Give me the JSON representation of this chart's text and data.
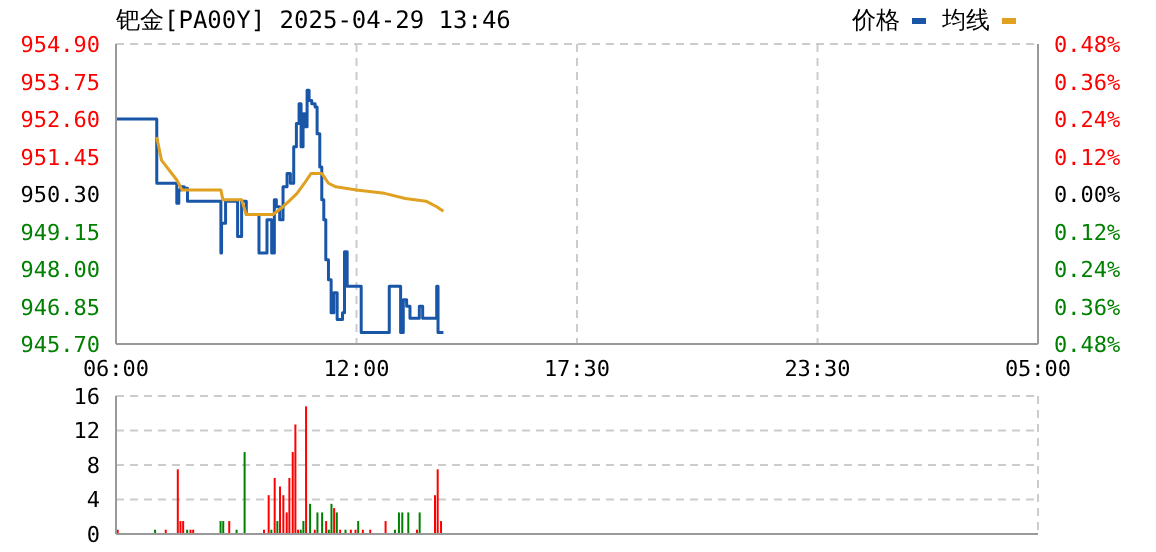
{
  "chart_data": [
    {
      "type": "line",
      "title": "钯金[PA00Y] 2025-04-29 13:46",
      "legend": "top right",
      "grid": true,
      "xlim": [
        "2025-04-29T06:00",
        "2025-04-30T05:00"
      ],
      "xticks": [
        {
          "value": "2025-04-29T06:00",
          "label": "06:00"
        },
        {
          "value": "2025-04-29T12:00",
          "label": "12:00"
        },
        {
          "value": "2025-04-29T17:30",
          "label": "17:30"
        },
        {
          "value": "2025-04-29T23:30",
          "label": "23:30"
        },
        {
          "value": "2025-04-30T05:00",
          "label": "05:00"
        }
      ],
      "ylim": [
        945.7,
        954.9
      ],
      "yticks": [
        {
          "value": 945.7,
          "label": "945.70"
        },
        {
          "value": 946.85,
          "label": "946.85"
        },
        {
          "value": 948,
          "label": "948.00"
        },
        {
          "value": 949.15,
          "label": "949.15"
        },
        {
          "value": 950.3,
          "label": "950.30"
        },
        {
          "value": 951.45,
          "label": "951.45"
        },
        {
          "value": 952.6,
          "label": "952.60"
        },
        {
          "value": 953.75,
          "label": "953.75"
        },
        {
          "value": 954.9,
          "label": "954.90"
        }
      ],
      "y2lim": [
        -0.48,
        0.48
      ],
      "y2ticks": [
        {
          "value": -0.48,
          "label": "0.48%"
        },
        {
          "value": -0.36,
          "label": "0.36%"
        },
        {
          "value": -0.24,
          "label": "0.24%"
        },
        {
          "value": -0.12,
          "label": "0.12%"
        },
        {
          "value": 0,
          "label": "0.00%"
        },
        {
          "value": 0.12,
          "label": "0.12%"
        },
        {
          "value": 0.24,
          "label": "0.24%"
        },
        {
          "value": 0.36,
          "label": "0.36%"
        },
        {
          "value": 0.48,
          "label": "0.48%"
        }
      ],
      "series": [
        {
          "name": "价格",
          "type": "step",
          "color": "#1a56a8",
          "x": [
            "2025-04-29T06:00",
            "2025-04-29T07:01",
            "2025-04-29T07:31",
            "2025-04-29T07:34",
            "2025-04-29T07:37",
            "2025-04-29T07:42",
            "2025-04-29T07:47",
            "2025-04-29T07:52",
            "2025-04-29T08:37",
            "2025-04-29T08:38",
            "2025-04-29T08:44",
            "2025-04-29T08:52",
            "2025-04-29T09:02",
            "2025-04-29T09:08",
            "2025-04-29T09:15",
            "2025-04-29T09:34",
            "2025-04-29T09:46",
            "2025-04-29T09:53",
            "2025-04-29T09:57",
            "2025-04-29T10:00",
            "2025-04-29T10:05",
            "2025-04-29T10:10",
            "2025-04-29T10:16",
            "2025-04-29T10:21",
            "2025-04-29T10:26",
            "2025-04-29T10:30",
            "2025-04-29T10:34",
            "2025-04-29T10:37",
            "2025-04-29T10:40",
            "2025-04-29T10:43",
            "2025-04-29T10:46",
            "2025-04-29T10:49",
            "2025-04-29T10:53",
            "2025-04-29T10:58",
            "2025-04-29T11:01",
            "2025-04-29T11:05",
            "2025-04-29T11:08",
            "2025-04-29T11:11",
            "2025-04-29T11:14",
            "2025-04-29T11:18",
            "2025-04-29T11:22",
            "2025-04-29T11:26",
            "2025-04-29T11:31",
            "2025-04-29T11:39",
            "2025-04-29T11:42",
            "2025-04-29T11:46",
            "2025-04-29T12:03",
            "2025-04-29T12:07",
            "2025-04-29T12:45",
            "2025-04-29T12:49",
            "2025-04-29T13:02",
            "2025-04-29T13:06",
            "2025-04-29T13:10",
            "2025-04-29T13:15",
            "2025-04-29T13:20",
            "2025-04-29T13:29",
            "2025-04-29T13:34",
            "2025-04-29T13:39",
            "2025-04-29T13:55",
            "2025-04-29T14:00",
            "2025-04-29T14:02",
            "2025-04-29T14:10"
          ],
          "values": [
            952.6,
            950.63,
            950.02,
            950.42,
            950.52,
            950.48,
            950.08,
            950.08,
            948.49,
            949.4,
            950.08,
            950.08,
            949.0,
            950.08,
            949.67,
            948.49,
            949.51,
            948.49,
            950.12,
            949.91,
            949.51,
            950.52,
            950.93,
            950.63,
            951.75,
            952.46,
            953.07,
            951.75,
            952.76,
            952.36,
            953.48,
            953.17,
            953.07,
            952.97,
            952.15,
            951.13,
            950.12,
            949.51,
            948.28,
            947.67,
            946.66,
            947.27,
            946.45,
            946.66,
            948.53,
            947.47,
            947.47,
            946.05,
            946.05,
            947.47,
            947.47,
            946.05,
            947.06,
            946.86,
            946.49,
            946.49,
            946.86,
            946.49,
            946.49,
            947.47,
            946.05,
            946.05
          ]
        },
        {
          "name": "均线",
          "type": "line",
          "color": "#e0a020",
          "x": [
            "2025-04-29T07:01",
            "2025-04-29T07:08",
            "2025-04-29T07:31",
            "2025-04-29T07:39",
            "2025-04-29T08:37",
            "2025-04-29T08:40",
            "2025-04-29T09:08",
            "2025-04-29T09:15",
            "2025-04-29T09:55",
            "2025-04-29T10:10",
            "2025-04-29T10:21",
            "2025-04-29T10:31",
            "2025-04-29T10:42",
            "2025-04-29T10:52",
            "2025-04-29T11:08",
            "2025-04-29T11:18",
            "2025-04-29T11:29",
            "2025-04-29T12:00",
            "2025-04-29T12:42",
            "2025-04-29T13:13",
            "2025-04-29T13:44",
            "2025-04-29T14:00",
            "2025-04-29T14:10"
          ],
          "values": [
            952.05,
            951.34,
            950.73,
            950.42,
            950.42,
            950.12,
            950.12,
            949.67,
            949.67,
            949.91,
            950.12,
            950.32,
            950.63,
            950.93,
            950.93,
            950.63,
            950.52,
            950.42,
            950.32,
            950.16,
            950.08,
            949.91,
            949.77
          ]
        }
      ]
    },
    {
      "type": "bar",
      "tick_labels": "y",
      "grid": true,
      "xlim": [
        "2025-04-29T06:00",
        "2025-04-30T05:00"
      ],
      "xticks": [
        {
          "value": "2025-04-29T06:00",
          "label": null
        },
        {
          "value": "2025-04-29T12:00",
          "label": null
        },
        {
          "value": "2025-04-29T17:30",
          "label": null
        },
        {
          "value": "2025-04-29T23:30",
          "label": null
        },
        {
          "value": "2025-04-30T05:00",
          "label": null
        }
      ],
      "ylim": [
        0,
        16
      ],
      "yticks": [
        0,
        4,
        8,
        12,
        16
      ],
      "x": [
        "2025-04-29T06:03",
        "2025-04-29T06:59",
        "2025-04-29T07:15",
        "2025-04-29T07:33",
        "2025-04-29T07:37",
        "2025-04-29T07:41",
        "2025-04-29T07:47",
        "2025-04-29T07:52",
        "2025-04-29T07:56",
        "2025-04-29T08:37",
        "2025-04-29T08:41",
        "2025-04-29T08:50",
        "2025-04-29T09:01",
        "2025-04-29T09:13",
        "2025-04-29T09:42",
        "2025-04-29T09:49",
        "2025-04-29T09:53",
        "2025-04-29T09:58",
        "2025-04-29T10:02",
        "2025-04-29T10:06",
        "2025-04-29T10:11",
        "2025-04-29T10:16",
        "2025-04-29T10:20",
        "2025-04-29T10:25",
        "2025-04-29T10:29",
        "2025-04-29T10:33",
        "2025-04-29T10:37",
        "2025-04-29T10:41",
        "2025-04-29T10:45",
        "2025-04-29T10:51",
        "2025-04-29T10:58",
        "2025-04-29T11:02",
        "2025-04-29T11:09",
        "2025-04-29T11:15",
        "2025-04-29T11:19",
        "2025-04-29T11:23",
        "2025-04-29T11:27",
        "2025-04-29T11:31",
        "2025-04-29T11:36",
        "2025-04-29T11:44",
        "2025-04-29T11:52",
        "2025-04-29T11:59",
        "2025-04-29T12:03",
        "2025-04-29T12:10",
        "2025-04-29T12:21",
        "2025-04-29T12:44",
        "2025-04-29T12:58",
        "2025-04-29T13:04",
        "2025-04-29T13:09",
        "2025-04-29T13:18",
        "2025-04-29T13:31",
        "2025-04-29T13:35",
        "2025-04-29T13:58",
        "2025-04-29T14:02",
        "2025-04-29T14:07"
      ],
      "values": [
        0.5,
        0.5,
        0.5,
        7.5,
        1.5,
        1.5,
        0.5,
        0.5,
        0.5,
        1.5,
        1.5,
        1.5,
        0.5,
        9.5,
        0.5,
        4.5,
        0.5,
        6.5,
        1.5,
        5.5,
        4.5,
        2.5,
        6.5,
        9.5,
        12.7,
        0.5,
        0.5,
        1.5,
        14.8,
        3.5,
        0.5,
        2.5,
        2.5,
        1.5,
        0.5,
        3.5,
        3,
        2.5,
        0.5,
        0.5,
        0.5,
        0.5,
        1.5,
        0.5,
        0.5,
        1.5,
        0.5,
        2.5,
        2.5,
        2.5,
        0.5,
        2.5,
        4.5,
        7.5,
        1.5
      ],
      "colors": [
        "#ff0000",
        "#008000",
        "#ff0000",
        "#ff0000",
        "#ff0000",
        "#ff0000",
        "#008000",
        "#ff0000",
        "#ff0000",
        "#008000",
        "#008000",
        "#ff0000",
        "#008000",
        "#008000",
        "#ff0000",
        "#ff0000",
        "#008000",
        "#ff0000",
        "#008000",
        "#ff0000",
        "#ff0000",
        "#ff0000",
        "#ff0000",
        "#ff0000",
        "#ff0000",
        "#ff0000",
        "#008000",
        "#008000",
        "#ff0000",
        "#008000",
        "#ff0000",
        "#008000",
        "#008000",
        "#ff0000",
        "#008000",
        "#008000",
        "#ff0000",
        "#008000",
        "#ff0000",
        "#008000",
        "#ff0000",
        "#ff0000",
        "#008000",
        "#ff0000",
        "#ff0000",
        "#ff0000",
        "#008000",
        "#008000",
        "#008000",
        "#008000",
        "#ff0000",
        "#008000",
        "#ff0000",
        "#ff0000",
        "#ff0000"
      ]
    }
  ]
}
